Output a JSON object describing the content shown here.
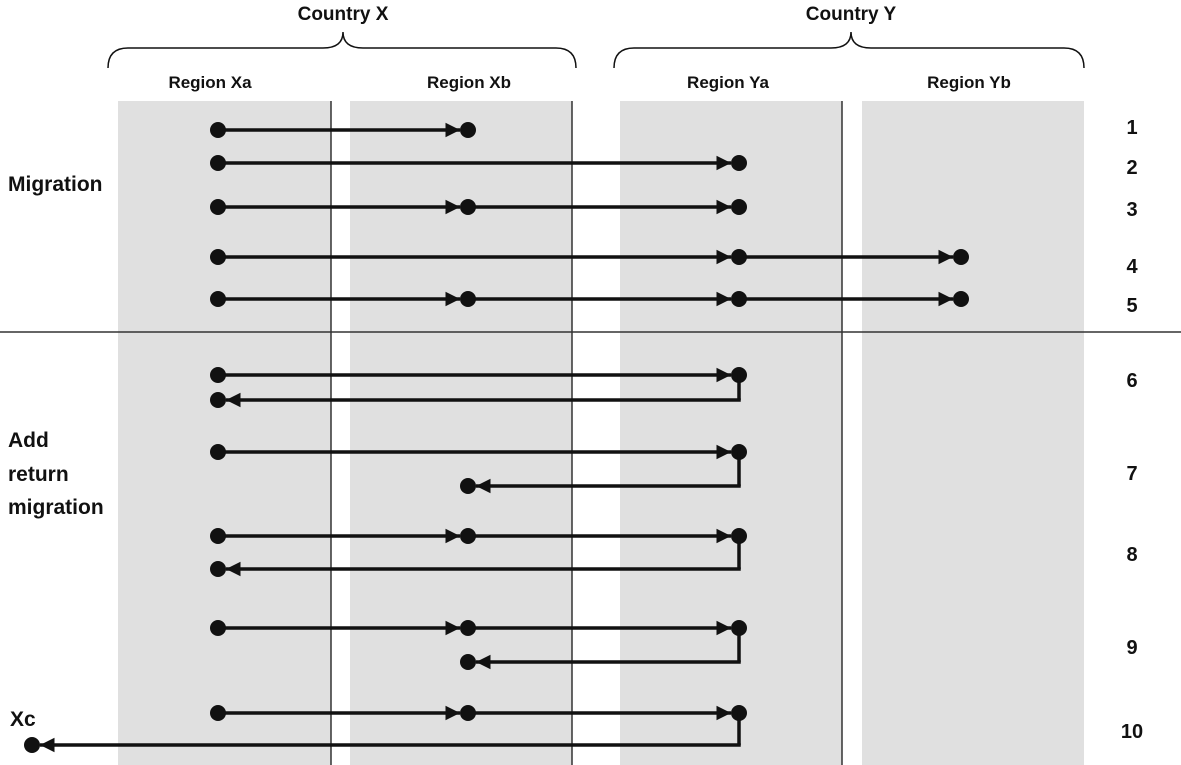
{
  "countries": [
    {
      "label": "Country X"
    },
    {
      "label": "Country Y"
    }
  ],
  "regions": [
    {
      "label": "Region Xa"
    },
    {
      "label": "Region Xb"
    },
    {
      "label": "Region Ya"
    },
    {
      "label": "Region Yb"
    }
  ],
  "sections": {
    "migration": {
      "lines": [
        "Migration"
      ]
    },
    "return_migration": {
      "lines": [
        "Add",
        "return",
        "migration"
      ]
    }
  },
  "row_numbers": [
    "1",
    "2",
    "3",
    "4",
    "5",
    "6",
    "7",
    "8",
    "9",
    "10"
  ],
  "outside_region": {
    "label": "Xc"
  },
  "colors": {
    "band": "#e0e0e0",
    "line": "#111111",
    "divider": "#333333",
    "background": "#ffffff"
  },
  "paths": [
    {
      "row": "1",
      "stops": [
        "Xa",
        "Xb"
      ]
    },
    {
      "row": "2",
      "stops": [
        "Xa",
        "Ya"
      ]
    },
    {
      "row": "3",
      "stops": [
        "Xa",
        "Xb",
        "Ya"
      ]
    },
    {
      "row": "4",
      "stops": [
        "Xa",
        "Ya",
        "Yb"
      ]
    },
    {
      "row": "5",
      "stops": [
        "Xa",
        "Xb",
        "Ya",
        "Yb"
      ]
    },
    {
      "row": "6",
      "stops": [
        "Xa",
        "Ya"
      ],
      "return_to": "Xa"
    },
    {
      "row": "7",
      "stops": [
        "Xa",
        "Ya"
      ],
      "return_to": "Xb"
    },
    {
      "row": "8",
      "stops": [
        "Xa",
        "Xb",
        "Ya"
      ],
      "return_to": "Xa"
    },
    {
      "row": "9",
      "stops": [
        "Xa",
        "Xb",
        "Ya"
      ],
      "return_to": "Xb"
    },
    {
      "row": "10",
      "stops": [
        "Xa",
        "Xb",
        "Ya"
      ],
      "return_to": "Xc"
    }
  ]
}
